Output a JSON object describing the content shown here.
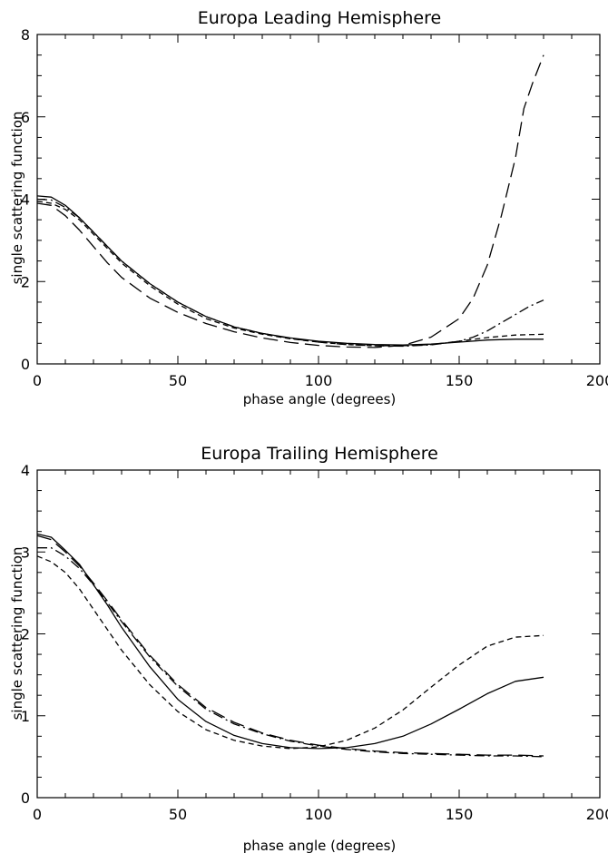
{
  "chart_data": [
    {
      "type": "line",
      "title": "Europa Leading Hemisphere",
      "xlabel": "phase angle (degrees)",
      "ylabel": "single scattering function",
      "xlim": [
        0,
        200
      ],
      "ylim": [
        0,
        8
      ],
      "xticks": [
        0,
        50,
        100,
        150,
        200
      ],
      "yticks": [
        0,
        2,
        4,
        6,
        8
      ],
      "grid": false,
      "legend": "none",
      "series": [
        {
          "style": "solid",
          "x": [
            0,
            5,
            10,
            15,
            20,
            25,
            30,
            40,
            50,
            60,
            70,
            80,
            90,
            100,
            110,
            120,
            130,
            140,
            150,
            160,
            170,
            180
          ],
          "y": [
            4.08,
            4.05,
            3.85,
            3.55,
            3.2,
            2.85,
            2.5,
            1.95,
            1.5,
            1.15,
            0.9,
            0.74,
            0.63,
            0.55,
            0.5,
            0.47,
            0.46,
            0.48,
            0.53,
            0.58,
            0.6,
            0.6
          ]
        },
        {
          "style": "short-dash",
          "x": [
            0,
            5,
            10,
            15,
            20,
            25,
            30,
            40,
            50,
            60,
            70,
            80,
            90,
            100,
            110,
            120,
            130,
            140,
            150,
            160,
            170,
            180
          ],
          "y": [
            3.95,
            3.9,
            3.75,
            3.5,
            3.15,
            2.8,
            2.45,
            1.9,
            1.45,
            1.1,
            0.87,
            0.72,
            0.61,
            0.53,
            0.47,
            0.44,
            0.44,
            0.47,
            0.55,
            0.64,
            0.7,
            0.72
          ]
        },
        {
          "style": "dash-dot",
          "x": [
            0,
            5,
            10,
            15,
            20,
            25,
            30,
            40,
            50,
            60,
            70,
            80,
            90,
            100,
            110,
            120,
            130,
            140,
            150,
            155,
            160,
            165,
            170,
            175,
            180
          ],
          "y": [
            4.0,
            3.98,
            3.8,
            3.55,
            3.2,
            2.85,
            2.5,
            1.95,
            1.5,
            1.15,
            0.9,
            0.74,
            0.62,
            0.53,
            0.47,
            0.44,
            0.43,
            0.46,
            0.55,
            0.65,
            0.8,
            1.0,
            1.2,
            1.4,
            1.55
          ]
        },
        {
          "style": "long-dash",
          "x": [
            0,
            5,
            10,
            15,
            20,
            25,
            30,
            40,
            50,
            60,
            70,
            80,
            90,
            100,
            110,
            120,
            130,
            140,
            150,
            155,
            160,
            165,
            170,
            173,
            176,
            180
          ],
          "y": [
            3.9,
            3.85,
            3.6,
            3.25,
            2.85,
            2.45,
            2.1,
            1.6,
            1.25,
            0.98,
            0.78,
            0.63,
            0.52,
            0.45,
            0.41,
            0.4,
            0.45,
            0.65,
            1.1,
            1.6,
            2.4,
            3.6,
            5.0,
            6.2,
            6.8,
            7.5
          ]
        }
      ]
    },
    {
      "type": "line",
      "title": "Europa Trailing Hemisphere",
      "xlabel": "phase angle (degrees)",
      "ylabel": "single scattering function",
      "xlim": [
        0,
        200
      ],
      "ylim": [
        0,
        4
      ],
      "xticks": [
        0,
        50,
        100,
        150,
        200
      ],
      "yticks": [
        0,
        1,
        2,
        3,
        4
      ],
      "grid": false,
      "legend": "none",
      "series": [
        {
          "style": "solid",
          "x": [
            0,
            5,
            10,
            15,
            20,
            25,
            30,
            40,
            50,
            60,
            70,
            80,
            90,
            100,
            110,
            120,
            130,
            140,
            150,
            160,
            170,
            180
          ],
          "y": [
            3.22,
            3.18,
            3.02,
            2.85,
            2.6,
            2.35,
            2.08,
            1.6,
            1.2,
            0.93,
            0.76,
            0.66,
            0.61,
            0.6,
            0.61,
            0.66,
            0.75,
            0.9,
            1.08,
            1.27,
            1.42,
            1.47
          ]
        },
        {
          "style": "short-dash",
          "x": [
            0,
            5,
            10,
            15,
            20,
            25,
            30,
            40,
            50,
            60,
            70,
            80,
            90,
            100,
            110,
            120,
            130,
            140,
            150,
            160,
            170,
            180
          ],
          "y": [
            2.95,
            2.88,
            2.75,
            2.55,
            2.3,
            2.05,
            1.8,
            1.38,
            1.05,
            0.83,
            0.7,
            0.63,
            0.6,
            0.62,
            0.7,
            0.85,
            1.07,
            1.35,
            1.62,
            1.85,
            1.96,
            1.98
          ]
        },
        {
          "style": "dash-dot",
          "x": [
            0,
            5,
            10,
            15,
            20,
            25,
            30,
            40,
            50,
            60,
            70,
            80,
            90,
            100,
            110,
            120,
            130,
            140,
            150,
            160,
            170,
            180
          ],
          "y": [
            3.05,
            3.05,
            2.95,
            2.8,
            2.6,
            2.38,
            2.15,
            1.72,
            1.36,
            1.08,
            0.9,
            0.78,
            0.69,
            0.63,
            0.59,
            0.56,
            0.54,
            0.53,
            0.52,
            0.51,
            0.51,
            0.5
          ]
        },
        {
          "style": "long-dash",
          "x": [
            0,
            5,
            10,
            15,
            20,
            25,
            30,
            40,
            50,
            60,
            70,
            80,
            90,
            100,
            110,
            120,
            130,
            140,
            150,
            160,
            170,
            180
          ],
          "y": [
            3.2,
            3.15,
            3.0,
            2.83,
            2.62,
            2.4,
            2.17,
            1.74,
            1.38,
            1.1,
            0.92,
            0.79,
            0.7,
            0.64,
            0.6,
            0.57,
            0.55,
            0.54,
            0.53,
            0.52,
            0.52,
            0.51
          ]
        }
      ]
    }
  ]
}
